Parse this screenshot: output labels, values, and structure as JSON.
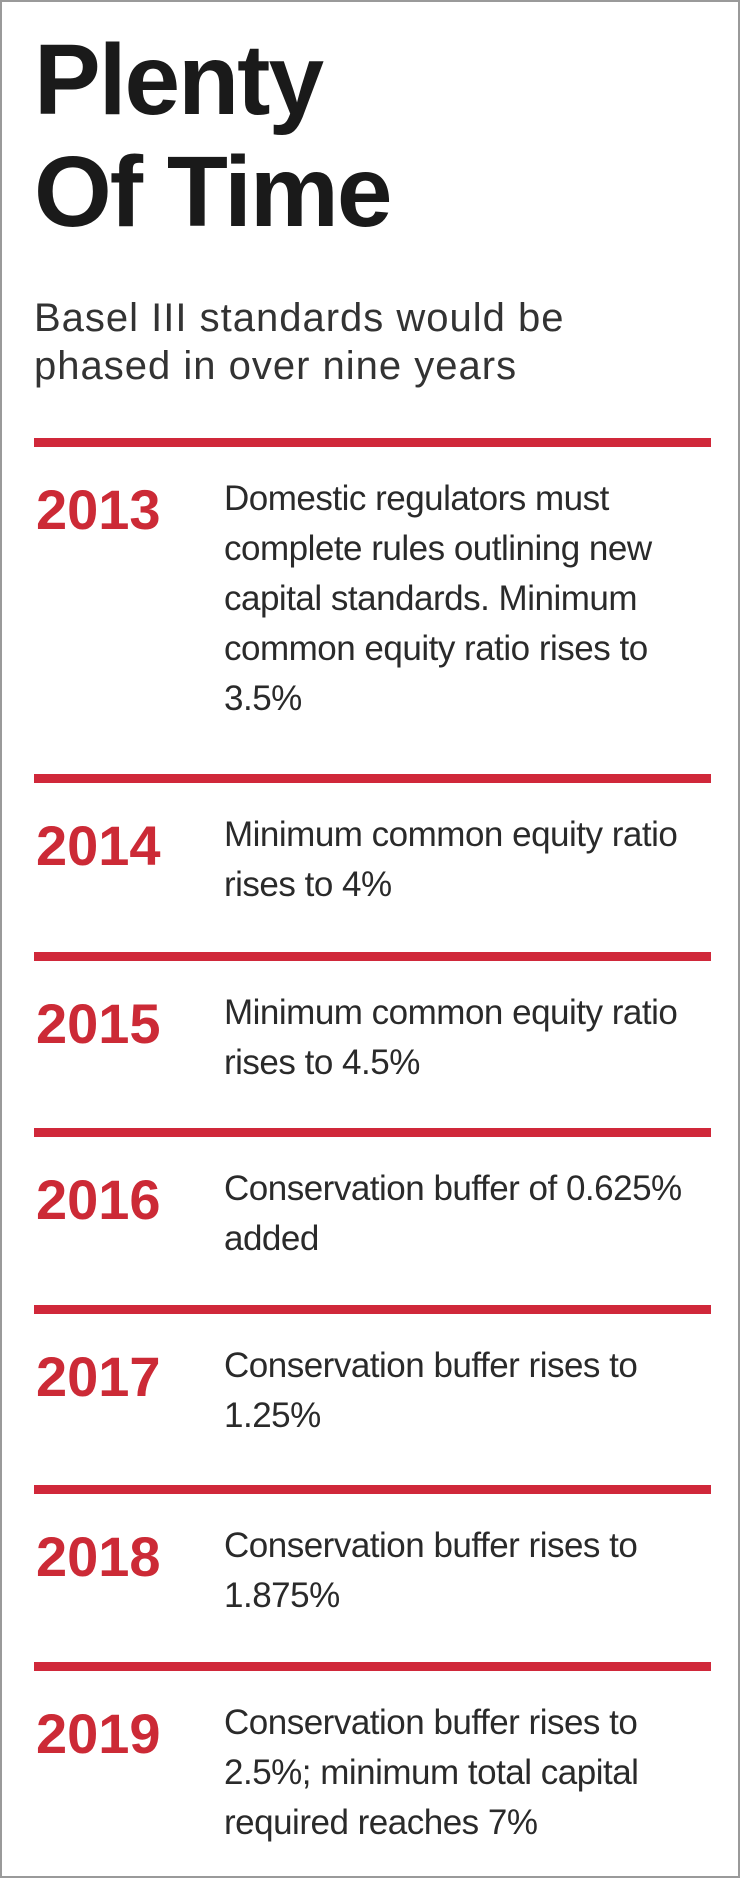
{
  "header": {
    "title": "Plenty Of Time",
    "subtitle": "Basel III standards would be phased in over nine years"
  },
  "timeline": [
    {
      "year": "2013",
      "text": "Domestic regulators must complete rules outlining new capital standards. Minimum common equity ratio rises to 3.5%"
    },
    {
      "year": "2014",
      "text": "Minimum common equity ratio rises to 4%"
    },
    {
      "year": "2015",
      "text": "Minimum common equity ratio rises to 4.5%"
    },
    {
      "year": "2016",
      "text": "Conservation buffer of 0.625% added"
    },
    {
      "year": "2017",
      "text": "Conservation buffer rises to 1.25%"
    },
    {
      "year": "2018",
      "text": "Conservation buffer rises to 1.875%"
    },
    {
      "year": "2019",
      "text": "Conservation buffer rises to 2.5%; minimum total capital required reaches 7%"
    }
  ]
}
